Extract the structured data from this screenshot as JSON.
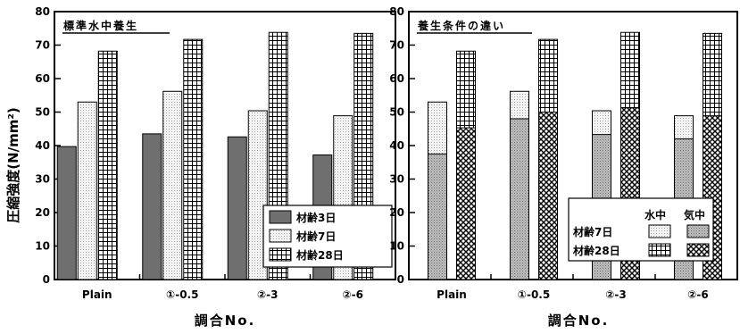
{
  "chart_data": [
    {
      "type": "bar",
      "title": "標準水中養生",
      "xlabel": "調合No.",
      "ylabel": "圧縮強度(N/mm²)",
      "ylim": [
        0,
        80
      ],
      "yticks": [
        0,
        10,
        20,
        30,
        40,
        50,
        60,
        70,
        80
      ],
      "grid": false,
      "categories": [
        "Plain",
        "①-0.5",
        "②-3",
        "②-6"
      ],
      "series": [
        {
          "name": "材齢3日",
          "values": [
            39.7,
            43.5,
            42.6,
            37.2
          ],
          "pattern": "dark-gray"
        },
        {
          "name": "材齢7日",
          "values": [
            53.0,
            56.2,
            50.4,
            48.9
          ],
          "pattern": "light-dots"
        },
        {
          "name": "材齢28日",
          "values": [
            68.2,
            71.7,
            73.8,
            73.5
          ],
          "pattern": "grid"
        }
      ],
      "legend": {
        "placement": "bottom-right",
        "entries": [
          "材齢3日",
          "材齢7日",
          "材齢28日"
        ]
      }
    },
    {
      "type": "bar",
      "stacked_overlay": true,
      "title": "養生条件の違い",
      "xlabel": "調合No.",
      "ylim": [
        0,
        80
      ],
      "yticks": [
        0,
        10,
        20,
        30,
        40,
        50,
        60,
        70,
        80
      ],
      "grid": false,
      "categories": [
        "Plain",
        "①-0.5",
        "②-3",
        "②-6"
      ],
      "groups": [
        {
          "name": "材齢7日",
          "water": [
            53.0,
            56.2,
            50.4,
            48.9
          ],
          "air": [
            37.5,
            48.0,
            43.3,
            42.0
          ]
        },
        {
          "name": "材齢28日",
          "water": [
            68.2,
            71.7,
            73.8,
            73.5
          ],
          "air": [
            45.3,
            50.0,
            51.3,
            48.9
          ]
        }
      ],
      "legend": {
        "placement": "bottom-right",
        "column_headers": [
          "水中",
          "気中"
        ],
        "rows": [
          "材齢7日",
          "材齢28日"
        ]
      }
    }
  ]
}
